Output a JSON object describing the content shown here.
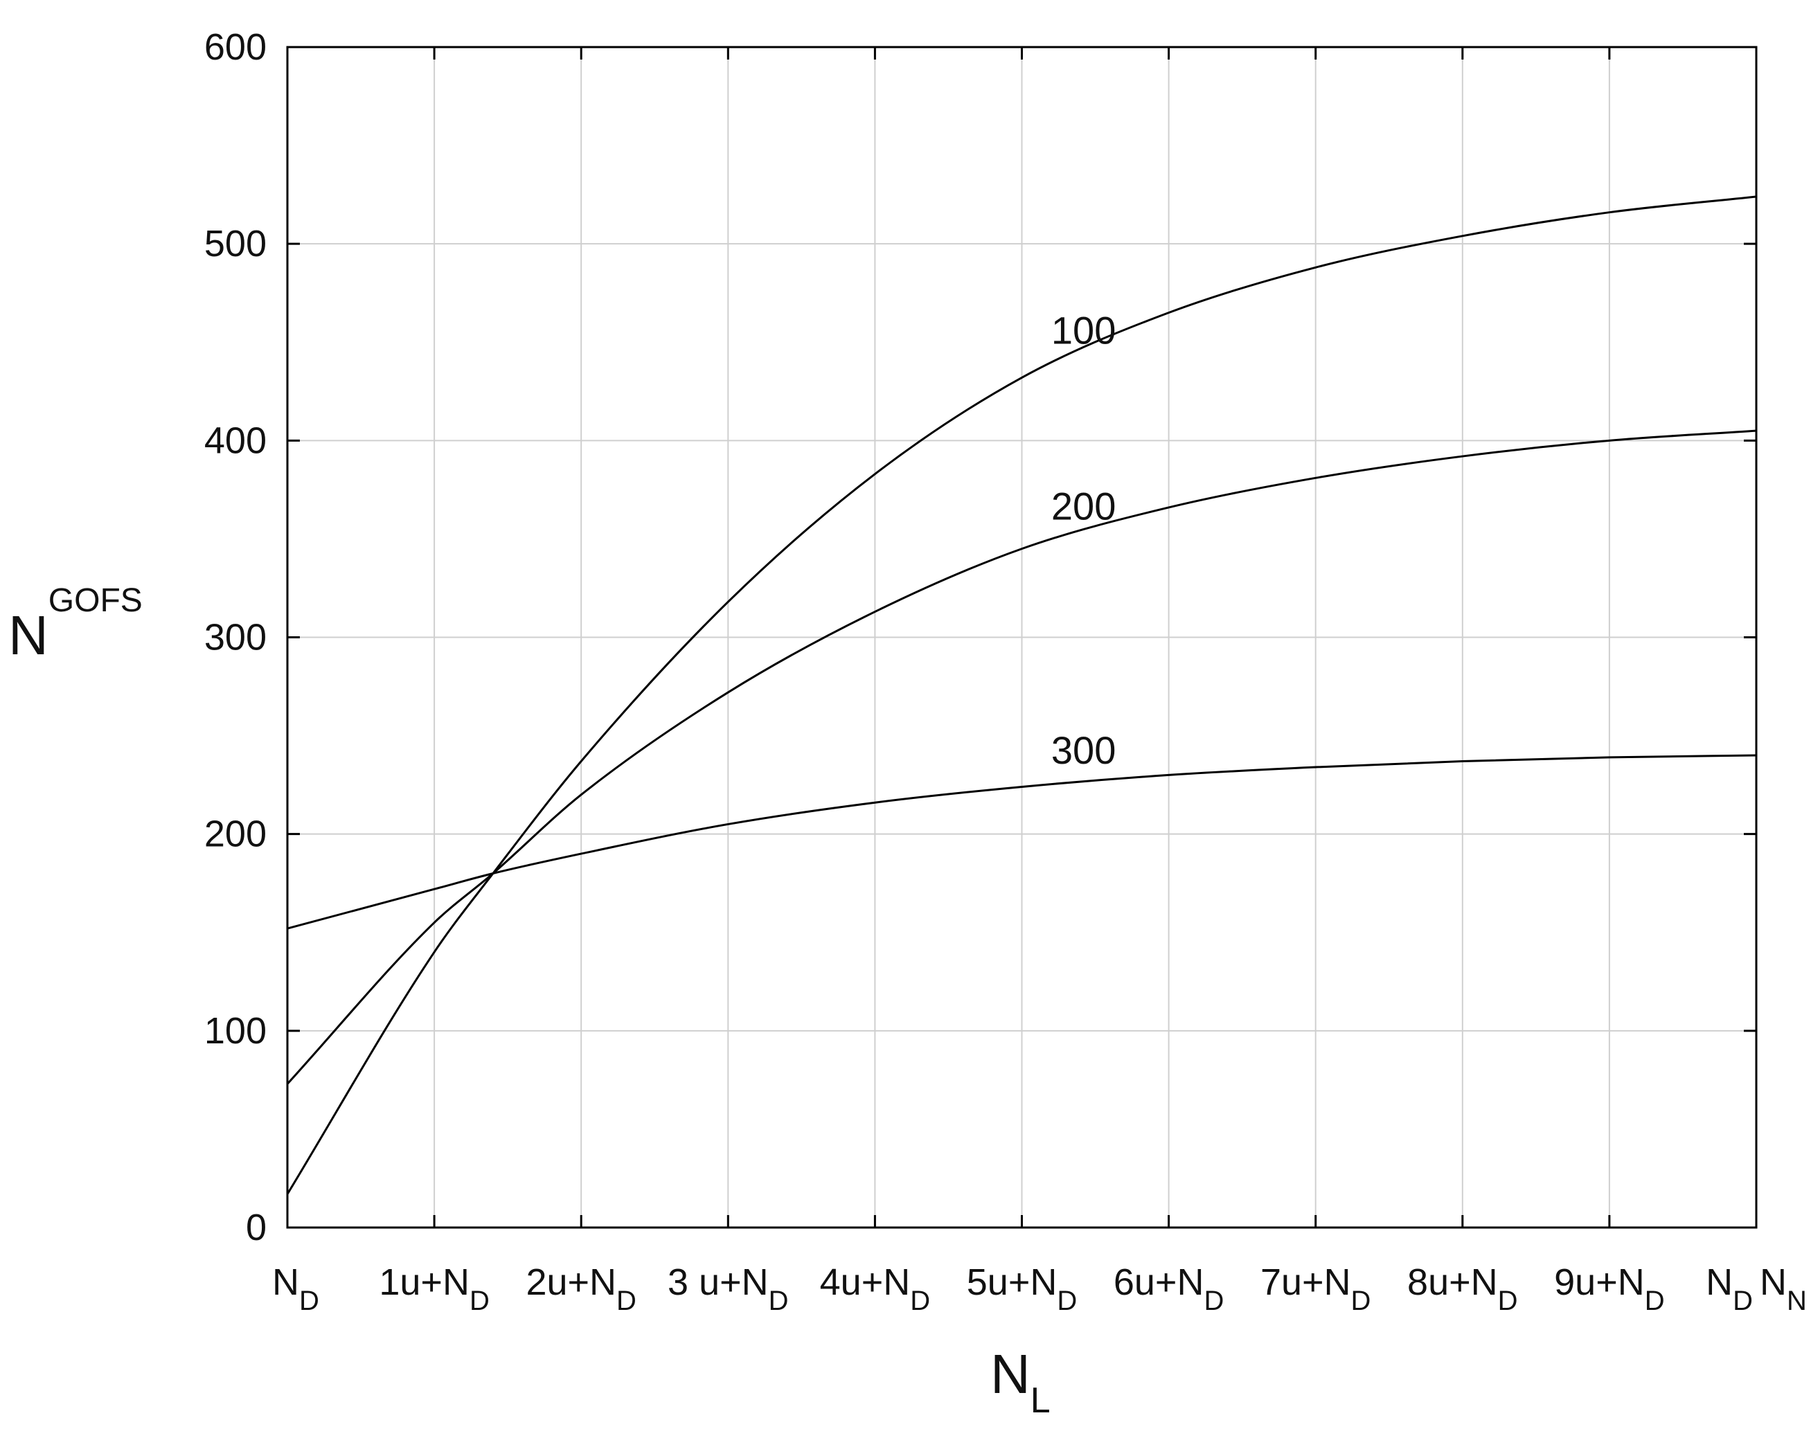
{
  "chart_data": {
    "type": "line",
    "title": "",
    "xlabel": {
      "main": "N",
      "sub": "L"
    },
    "ylabel": {
      "main": "N",
      "sup": "GOFS"
    },
    "x_ticks": [
      {
        "main": "N",
        "sub": "D"
      },
      {
        "main": "1u+N",
        "sub": "D"
      },
      {
        "main": "2u+N",
        "sub": "D"
      },
      {
        "main": "3 u+N",
        "sub": "D"
      },
      {
        "main": "4u+N",
        "sub": "D"
      },
      {
        "main": "5u+N",
        "sub": "D"
      },
      {
        "main": "6u+N",
        "sub": "D"
      },
      {
        "main": "7u+N",
        "sub": "D"
      },
      {
        "main": "8u+N",
        "sub": "D"
      },
      {
        "main": "9u+N",
        "sub": "D"
      },
      {
        "main": "N",
        "sub": "D",
        "main2": "N",
        "sub2": "N"
      }
    ],
    "x": [
      0,
      1,
      2,
      3,
      4,
      5,
      6,
      7,
      8,
      9,
      10
    ],
    "xlim": [
      0,
      10
    ],
    "ylim": [
      0,
      600
    ],
    "y_ticks": [
      0,
      100,
      200,
      300,
      400,
      500,
      600
    ],
    "grid": true,
    "series": [
      {
        "name": "100",
        "values": [
          17,
          140,
          237,
          318,
          383,
          432,
          465,
          488,
          504,
          516,
          524
        ]
      },
      {
        "name": "200",
        "values": [
          73,
          155,
          220,
          272,
          313,
          345,
          366,
          381,
          392,
          400,
          405
        ]
      },
      {
        "name": "300",
        "values": [
          152,
          172,
          190,
          205,
          216,
          224,
          230,
          234,
          237,
          239,
          240
        ]
      }
    ],
    "intersection": {
      "x": 1.4,
      "y": 180
    }
  }
}
